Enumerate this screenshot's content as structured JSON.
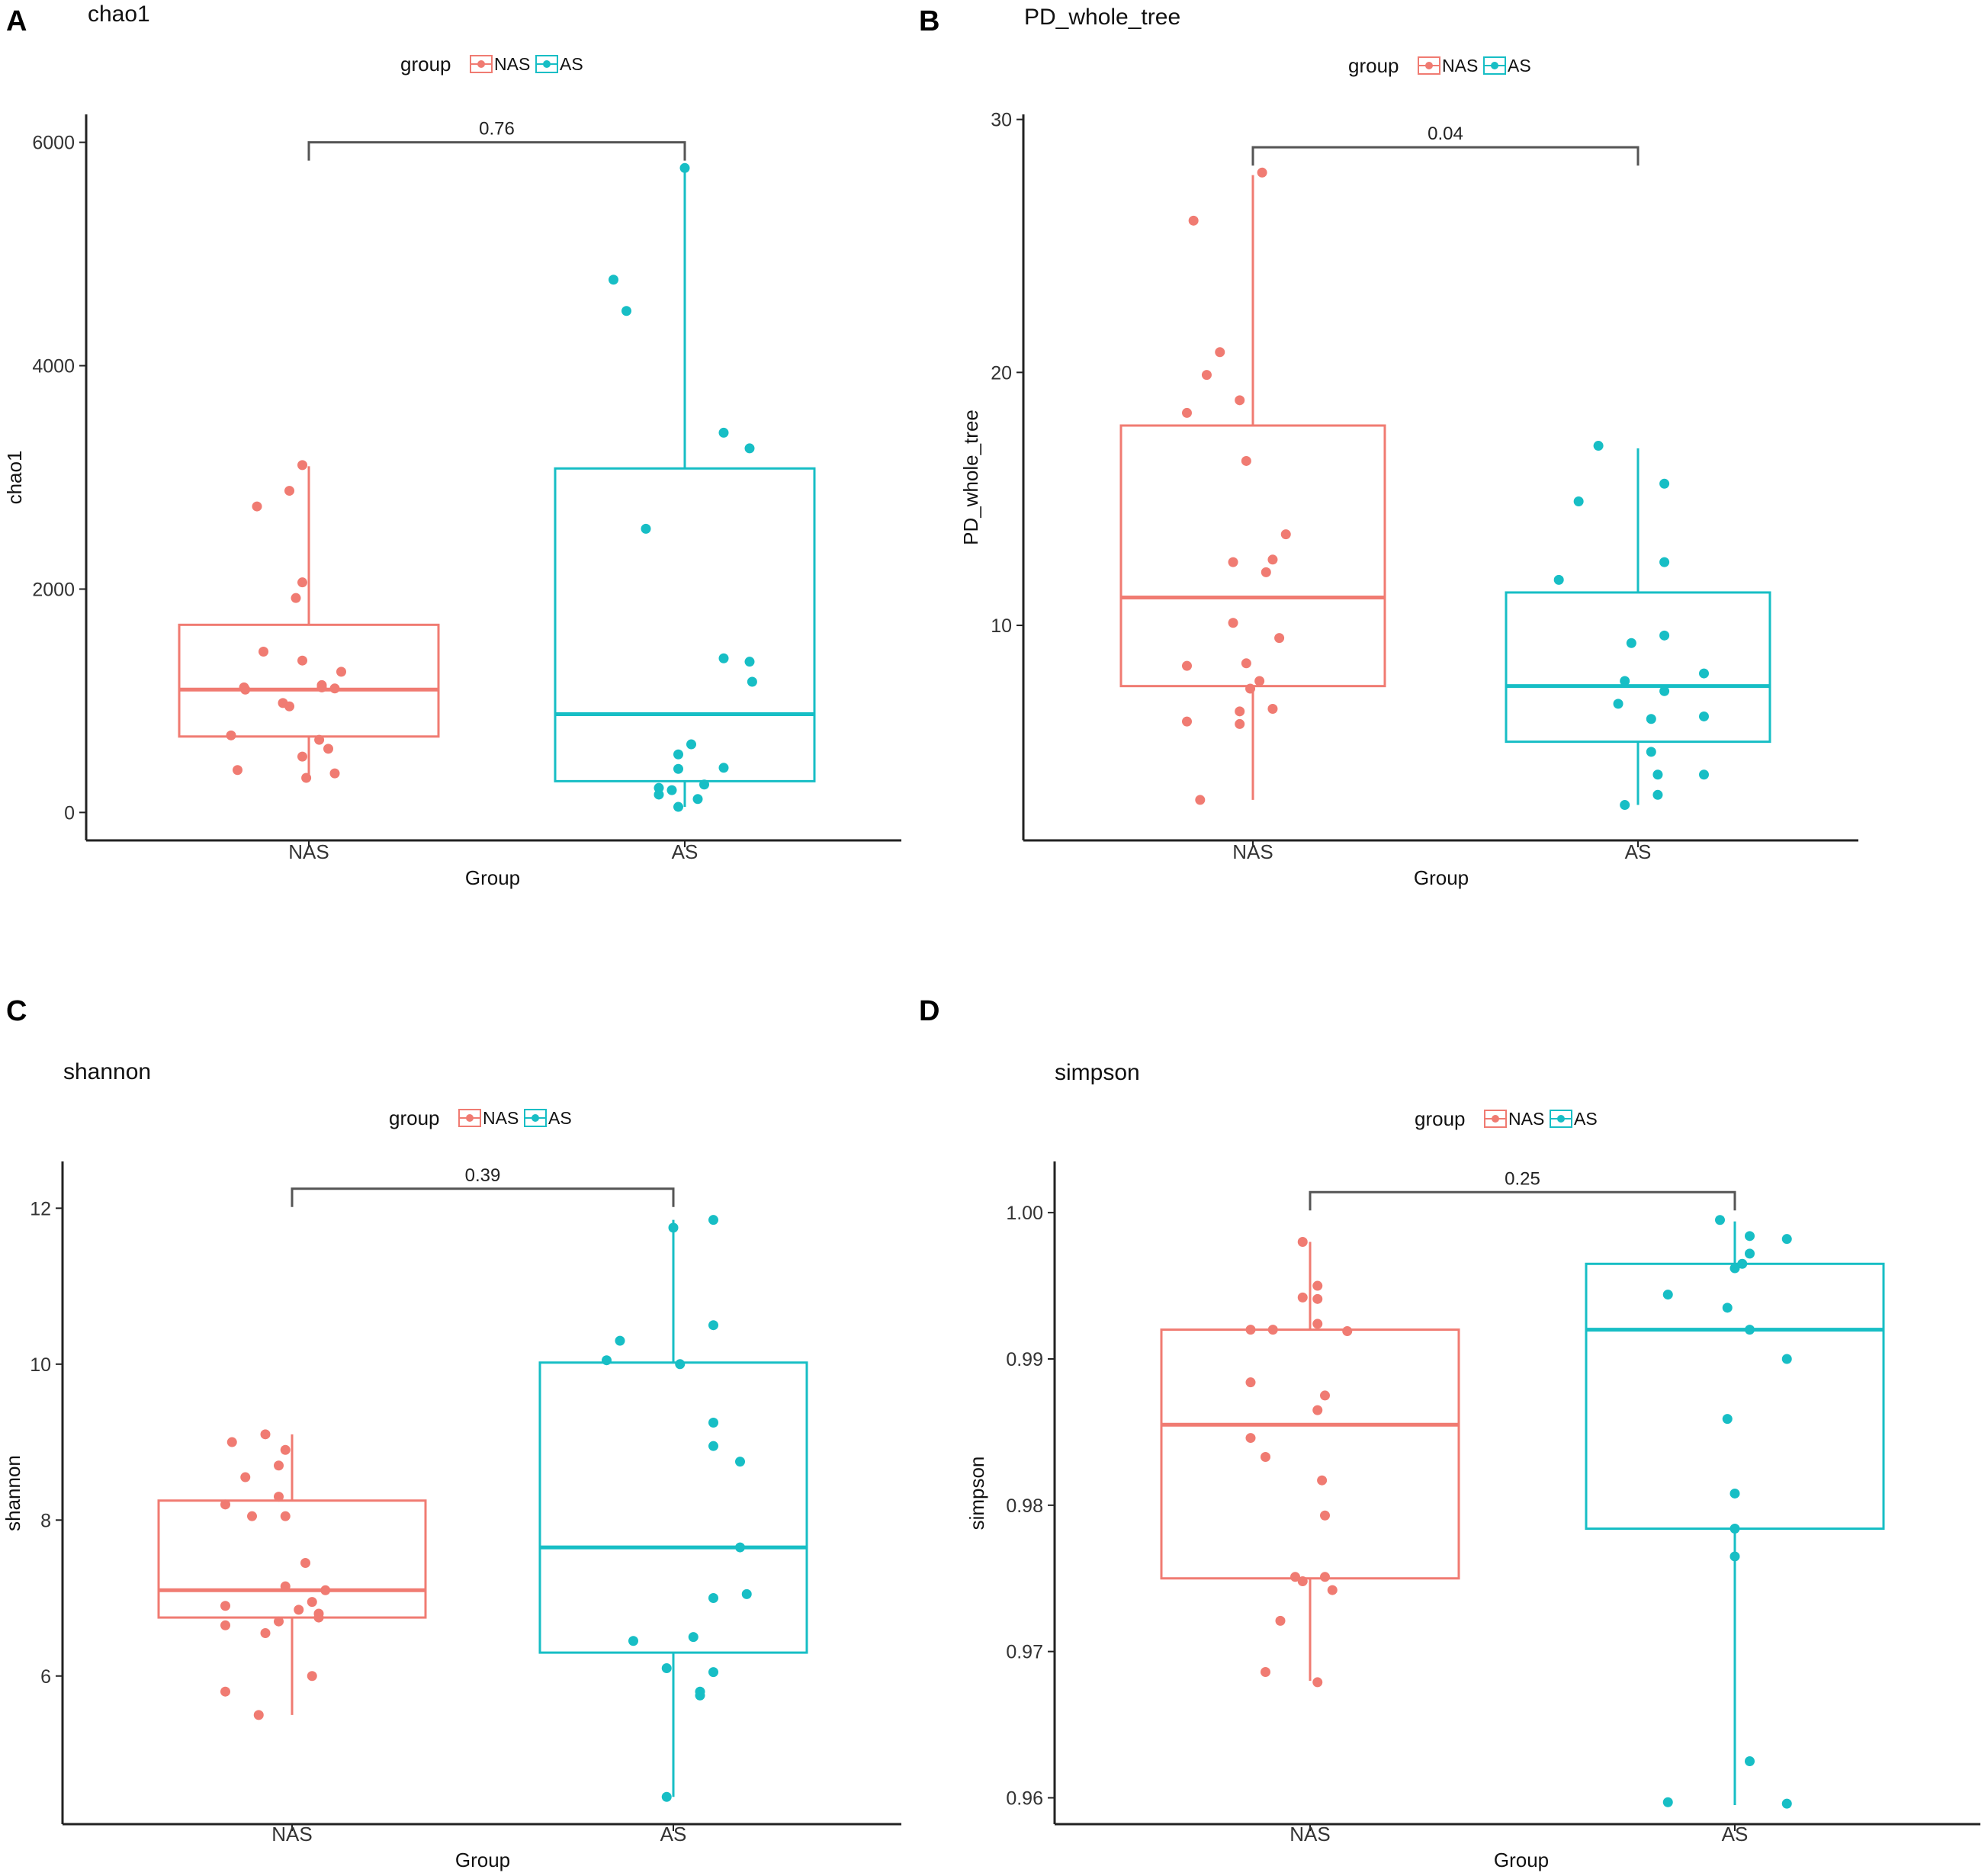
{
  "colors": {
    "nas": "#F07B72",
    "as": "#17BEC5",
    "axis": "#222222",
    "bracket": "#555555"
  },
  "legend": {
    "title": "group",
    "items": [
      "NAS",
      "AS"
    ]
  },
  "chart_data": [
    {
      "panel": "A",
      "type": "box",
      "title": "chao1",
      "xlabel": "Group",
      "ylabel": "chao1",
      "categories": [
        "NAS",
        "AS"
      ],
      "ylim": [
        -250,
        6250
      ],
      "yticks": [
        0,
        2000,
        4000,
        6000
      ],
      "pvalue": "0.76",
      "bracket_y": 6000,
      "boxes": [
        {
          "group": "NAS",
          "min": 300,
          "q1": 680,
          "median": 1100,
          "q3": 1680,
          "max": 3100
        },
        {
          "group": "AS",
          "min": 50,
          "q1": 280,
          "median": 880,
          "q3": 3080,
          "max": 5770
        }
      ],
      "points": [
        [
          [
            -0.5,
            1120
          ],
          [
            -0.49,
            1100
          ],
          [
            0.1,
            1120
          ],
          [
            0.2,
            1110
          ],
          [
            -0.2,
            980
          ],
          [
            -0.15,
            950
          ],
          [
            -0.35,
            1440
          ],
          [
            0.1,
            1140
          ],
          [
            0.25,
            1260
          ],
          [
            -0.05,
            1360
          ],
          [
            -0.05,
            2060
          ],
          [
            -0.1,
            1920
          ],
          [
            -0.4,
            2740
          ],
          [
            -0.15,
            2880
          ],
          [
            -0.05,
            3110
          ],
          [
            -0.6,
            690
          ],
          [
            0.08,
            650
          ],
          [
            0.15,
            570
          ],
          [
            -0.05,
            500
          ],
          [
            -0.55,
            380
          ],
          [
            0.2,
            350
          ],
          [
            -0.02,
            310
          ]
        ],
        [
          [
            -0.55,
            4770
          ],
          [
            -0.45,
            4490
          ],
          [
            0,
            5770
          ],
          [
            0.3,
            3400
          ],
          [
            0.5,
            3260
          ],
          [
            -0.3,
            2540
          ],
          [
            0.3,
            1380
          ],
          [
            0.5,
            1350
          ],
          [
            0.52,
            1170
          ],
          [
            0.05,
            610
          ],
          [
            -0.05,
            520
          ],
          [
            0.3,
            400
          ],
          [
            -0.05,
            390
          ],
          [
            0.15,
            250
          ],
          [
            -0.2,
            220
          ],
          [
            -0.1,
            200
          ],
          [
            -0.2,
            160
          ],
          [
            0.1,
            120
          ],
          [
            -0.05,
            50
          ]
        ]
      ]
    },
    {
      "panel": "B",
      "type": "box",
      "title": "PD_whole_tree",
      "xlabel": "Group",
      "ylabel": "PD_whole_tree",
      "categories": [
        "NAS",
        "AS"
      ],
      "ylim": [
        1.5,
        30.2
      ],
      "yticks": [
        10,
        20,
        30
      ],
      "pvalue": "0.04",
      "bracket_y": 28.9,
      "boxes": [
        {
          "group": "NAS",
          "min": 3.1,
          "q1": 7.6,
          "median": 11.1,
          "q3": 17.9,
          "max": 27.8
        },
        {
          "group": "AS",
          "min": 2.9,
          "q1": 5.4,
          "median": 7.6,
          "q3": 11.3,
          "max": 17.0
        }
      ],
      "points": [
        [
          [
            0.07,
            27.9
          ],
          [
            -0.45,
            26.0
          ],
          [
            -0.25,
            20.8
          ],
          [
            -0.35,
            19.9
          ],
          [
            -0.1,
            18.9
          ],
          [
            -0.5,
            18.4
          ],
          [
            -0.05,
            16.5
          ],
          [
            0.25,
            13.6
          ],
          [
            0.15,
            12.6
          ],
          [
            -0.15,
            12.5
          ],
          [
            0.1,
            12.1
          ],
          [
            -0.15,
            10.1
          ],
          [
            0.2,
            9.5
          ],
          [
            -0.5,
            8.4
          ],
          [
            -0.05,
            8.5
          ],
          [
            0.05,
            7.8
          ],
          [
            -0.02,
            7.5
          ],
          [
            -0.1,
            6.6
          ],
          [
            -0.1,
            6.1
          ],
          [
            0.15,
            6.7
          ],
          [
            -0.5,
            6.2
          ],
          [
            -0.4,
            3.1
          ]
        ],
        [
          [
            -0.3,
            17.1
          ],
          [
            -0.45,
            14.9
          ],
          [
            0.2,
            15.6
          ],
          [
            0.2,
            12.5
          ],
          [
            -0.6,
            11.8
          ],
          [
            -0.05,
            9.3
          ],
          [
            0.2,
            9.6
          ],
          [
            0.5,
            8.1
          ],
          [
            -0.1,
            7.8
          ],
          [
            0.2,
            7.4
          ],
          [
            -0.15,
            6.9
          ],
          [
            0.1,
            6.3
          ],
          [
            0.5,
            6.4
          ],
          [
            0.1,
            5.0
          ],
          [
            0.15,
            4.1
          ],
          [
            0.5,
            4.1
          ],
          [
            0.15,
            3.3
          ],
          [
            -0.1,
            2.9
          ]
        ]
      ]
    },
    {
      "panel": "C",
      "type": "box",
      "title": "shannon",
      "xlabel": "Group",
      "ylabel": "shannon",
      "categories": [
        "NAS",
        "AS"
      ],
      "ylim": [
        4.1,
        12.6
      ],
      "yticks": [
        6,
        8,
        10,
        12
      ],
      "pvalue": "0.39",
      "bracket_y": 12.25,
      "boxes": [
        {
          "group": "NAS",
          "min": 5.5,
          "q1": 6.75,
          "median": 7.1,
          "q3": 8.25,
          "max": 9.1
        },
        {
          "group": "AS",
          "min": 4.45,
          "q1": 6.3,
          "median": 7.65,
          "q3": 10.02,
          "max": 11.85
        }
      ],
      "points": [
        [
          [
            -0.2,
            9.1
          ],
          [
            -0.45,
            9.0
          ],
          [
            -0.05,
            8.9
          ],
          [
            -0.1,
            8.7
          ],
          [
            -0.35,
            8.55
          ],
          [
            -0.1,
            8.3
          ],
          [
            -0.5,
            8.2
          ],
          [
            -0.3,
            8.05
          ],
          [
            -0.05,
            8.05
          ],
          [
            0.1,
            7.45
          ],
          [
            -0.05,
            7.15
          ],
          [
            0.25,
            7.1
          ],
          [
            0.15,
            6.95
          ],
          [
            -0.5,
            6.9
          ],
          [
            0.05,
            6.85
          ],
          [
            0.2,
            6.8
          ],
          [
            0.2,
            6.75
          ],
          [
            -0.1,
            6.7
          ],
          [
            -0.5,
            6.65
          ],
          [
            -0.2,
            6.55
          ],
          [
            0.15,
            6.0
          ],
          [
            -0.5,
            5.8
          ],
          [
            -0.25,
            5.5
          ]
        ],
        [
          [
            0,
            11.75
          ],
          [
            0.3,
            11.85
          ],
          [
            0.3,
            10.5
          ],
          [
            -0.4,
            10.3
          ],
          [
            -0.5,
            10.05
          ],
          [
            0.05,
            10.0
          ],
          [
            0.3,
            9.25
          ],
          [
            0.3,
            8.95
          ],
          [
            0.5,
            8.75
          ],
          [
            0.5,
            7.65
          ],
          [
            0.3,
            7.0
          ],
          [
            0.55,
            7.05
          ],
          [
            -0.3,
            6.45
          ],
          [
            0.15,
            6.5
          ],
          [
            0.3,
            6.05
          ],
          [
            -0.05,
            6.1
          ],
          [
            0.2,
            5.8
          ],
          [
            0.2,
            5.75
          ],
          [
            -0.05,
            4.45
          ]
        ]
      ]
    },
    {
      "panel": "D",
      "type": "box",
      "title": "simpson",
      "xlabel": "Group",
      "ylabel": "simpson",
      "categories": [
        "NAS",
        "AS"
      ],
      "ylim": [
        0.9582,
        1.0035
      ],
      "yticks": [
        0.96,
        0.97,
        0.98,
        0.99,
        1.0
      ],
      "ytick_labels": [
        "0.96",
        "0.97",
        "0.98",
        "0.99",
        "1.00"
      ],
      "pvalue": "0.25",
      "bracket_y": 1.0014,
      "boxes": [
        {
          "group": "NAS",
          "min": 0.968,
          "q1": 0.975,
          "median": 0.9855,
          "q3": 0.992,
          "max": 0.998
        },
        {
          "group": "AS",
          "min": 0.9595,
          "q1": 0.9784,
          "median": 0.992,
          "q3": 0.9965,
          "max": 0.9994
        }
      ],
      "points": [
        [
          [
            -0.05,
            0.998
          ],
          [
            0.05,
            0.995
          ],
          [
            -0.05,
            0.9942
          ],
          [
            0.05,
            0.9941
          ],
          [
            0.05,
            0.9924
          ],
          [
            -0.25,
            0.992
          ],
          [
            -0.4,
            0.992
          ],
          [
            0.25,
            0.9919
          ],
          [
            0.1,
            0.9875
          ],
          [
            0.05,
            0.9865
          ],
          [
            -0.4,
            0.9884
          ],
          [
            -0.4,
            0.9846
          ],
          [
            -0.3,
            0.9833
          ],
          [
            0.08,
            0.9817
          ],
          [
            0.1,
            0.9793
          ],
          [
            -0.1,
            0.9751
          ],
          [
            -0.05,
            0.9748
          ],
          [
            0.1,
            0.9751
          ],
          [
            0.15,
            0.9742
          ],
          [
            -0.2,
            0.9721
          ],
          [
            -0.3,
            0.9686
          ],
          [
            0.05,
            0.9679
          ]
        ],
        [
          [
            -0.1,
            0.9995
          ],
          [
            0.1,
            0.9984
          ],
          [
            0.35,
            0.9982
          ],
          [
            0.1,
            0.9972
          ],
          [
            0.0,
            0.9962
          ],
          [
            0.05,
            0.9965
          ],
          [
            -0.45,
            0.9944
          ],
          [
            -0.05,
            0.9935
          ],
          [
            0.1,
            0.992
          ],
          [
            0.35,
            0.99
          ],
          [
            -0.05,
            0.9859
          ],
          [
            0.0,
            0.9808
          ],
          [
            0.0,
            0.9784
          ],
          [
            0.0,
            0.9765
          ],
          [
            0.1,
            0.9625
          ],
          [
            -0.45,
            0.9597
          ],
          [
            0.35,
            0.9596
          ]
        ]
      ]
    }
  ]
}
